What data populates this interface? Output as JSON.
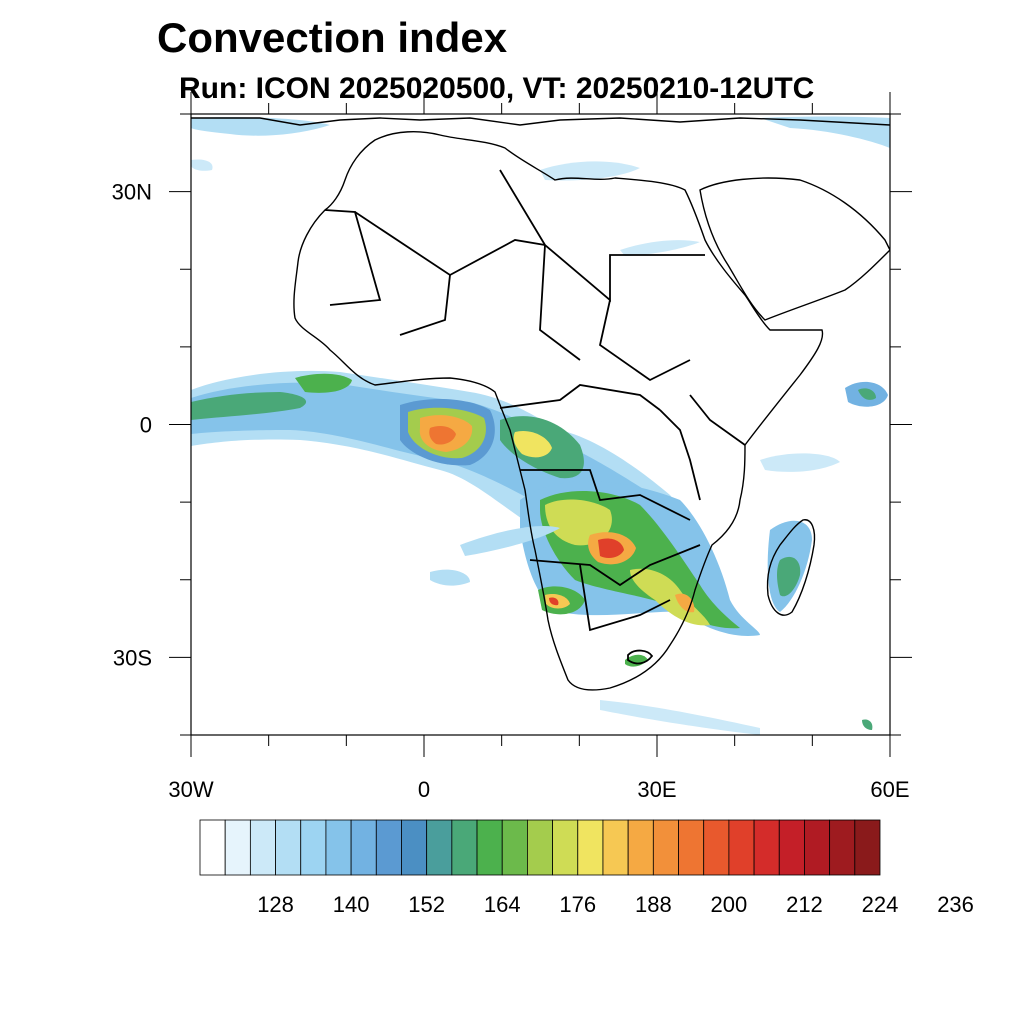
{
  "title": "Convection index",
  "subtitle": "Run: ICON 2025020500,  VT: 20250210-12UTC",
  "map": {
    "lon_range": [
      -30,
      60
    ],
    "lat_range": [
      -40,
      40
    ],
    "lon_ticks": [
      {
        "lon": -30,
        "label": "30W"
      },
      {
        "lon": 0,
        "label": "0"
      },
      {
        "lon": 30,
        "label": "30E"
      },
      {
        "lon": 60,
        "label": "60E"
      }
    ],
    "lat_ticks": [
      {
        "lat": 30,
        "label": "30N"
      },
      {
        "lat": 0,
        "label": "0"
      },
      {
        "lat": -30,
        "label": "30S"
      }
    ]
  },
  "colorbar": {
    "colors": [
      "#ffffff",
      "#e6f4fc",
      "#cce9f8",
      "#b3def4",
      "#9dd4f2",
      "#85c3ea",
      "#72b2e2",
      "#5b9ad2",
      "#4b8fc3",
      "#4a9e9c",
      "#4aa878",
      "#4cb14d",
      "#6cba4b",
      "#a4cc4d",
      "#cfdc55",
      "#f0e460",
      "#f6c853",
      "#f5a943",
      "#f2903a",
      "#ee7532",
      "#e8592d",
      "#e0402a",
      "#d42c2a",
      "#c41f28",
      "#b01b23",
      "#9e1b1f",
      "#8a1a1b"
    ],
    "labels": [
      "128",
      "140",
      "152",
      "164",
      "176",
      "188",
      "200",
      "212",
      "224",
      "236"
    ]
  }
}
